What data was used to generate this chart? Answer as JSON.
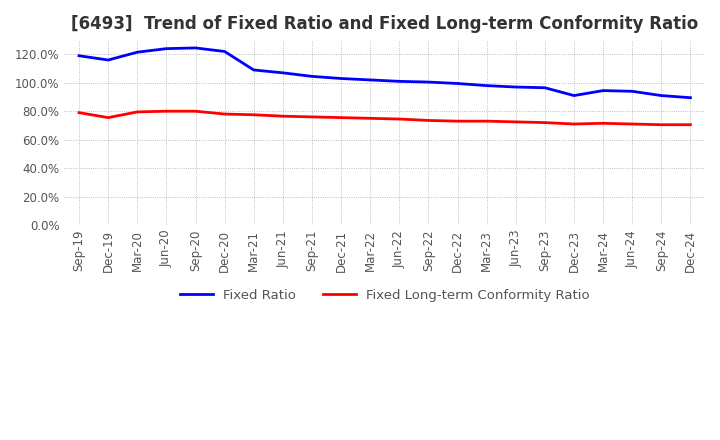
{
  "title": "[6493]  Trend of Fixed Ratio and Fixed Long-term Conformity Ratio",
  "x_labels": [
    "Sep-19",
    "Dec-19",
    "Mar-20",
    "Jun-20",
    "Sep-20",
    "Dec-20",
    "Mar-21",
    "Jun-21",
    "Sep-21",
    "Dec-21",
    "Mar-22",
    "Jun-22",
    "Sep-22",
    "Dec-22",
    "Mar-23",
    "Jun-23",
    "Sep-23",
    "Dec-23",
    "Mar-24",
    "Jun-24",
    "Sep-24",
    "Dec-24"
  ],
  "fixed_ratio": [
    119.0,
    116.0,
    121.5,
    124.0,
    124.5,
    122.0,
    109.0,
    107.0,
    104.5,
    103.0,
    102.0,
    101.0,
    100.5,
    99.5,
    98.0,
    97.0,
    96.5,
    91.0,
    94.5,
    94.0,
    91.0,
    89.5
  ],
  "fixed_lt_ratio": [
    79.0,
    75.5,
    79.5,
    80.0,
    80.0,
    78.0,
    77.5,
    76.5,
    76.0,
    75.5,
    75.0,
    74.5,
    73.5,
    73.0,
    73.0,
    72.5,
    72.0,
    71.0,
    71.5,
    71.0,
    70.5,
    70.5
  ],
  "ylim": [
    0,
    130
  ],
  "yticks": [
    0,
    20,
    40,
    60,
    80,
    100,
    120
  ],
  "line_color_fixed": "#0000FF",
  "line_color_lt": "#FF0000",
  "legend_fixed": "Fixed Ratio",
  "legend_lt": "Fixed Long-term Conformity Ratio",
  "background_color": "#FFFFFF",
  "grid_color": "#AAAAAA",
  "title_fontsize": 12,
  "tick_fontsize": 8.5,
  "legend_fontsize": 9.5
}
